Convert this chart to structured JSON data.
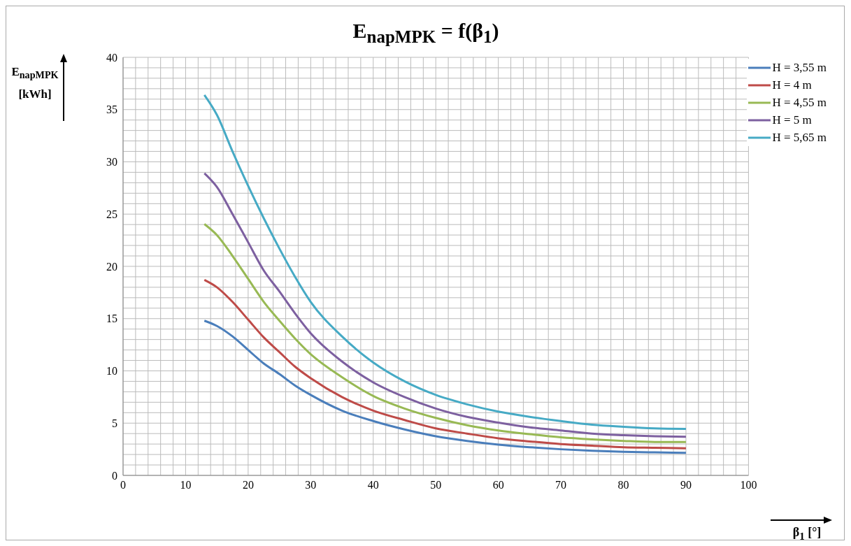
{
  "chart_data": {
    "type": "line",
    "title": "E$_{napMPK}$ = f(β$_{1}$)",
    "xlabel": "β$_{1}$ [°]",
    "ylabel": "E$_{napMPK}$ [kWh]",
    "xlim": [
      0,
      100
    ],
    "ylim": [
      0,
      40
    ],
    "xticks": [
      0,
      {
        "value": 2,
        "label": null
      },
      {
        "value": 4,
        "label": null
      },
      {
        "value": 6,
        "label": null
      },
      {
        "value": 8,
        "label": null
      },
      10,
      {
        "value": 12,
        "label": null
      },
      {
        "value": 14,
        "label": null
      },
      {
        "value": 16,
        "label": null
      },
      {
        "value": 18,
        "label": null
      },
      20,
      {
        "value": 22,
        "label": null
      },
      {
        "value": 24,
        "label": null
      },
      {
        "value": 26,
        "label": null
      },
      {
        "value": 28,
        "label": null
      },
      30,
      {
        "value": 32,
        "label": null
      },
      {
        "value": 34,
        "label": null
      },
      {
        "value": 36,
        "label": null
      },
      {
        "value": 38,
        "label": null
      },
      40,
      {
        "value": 42,
        "label": null
      },
      {
        "value": 44,
        "label": null
      },
      {
        "value": 46,
        "label": null
      },
      {
        "value": 48,
        "label": null
      },
      50,
      {
        "value": 52,
        "label": null
      },
      {
        "value": 54,
        "label": null
      },
      {
        "value": 56,
        "label": null
      },
      {
        "value": 58,
        "label": null
      },
      60,
      {
        "value": 62,
        "label": null
      },
      {
        "value": 64,
        "label": null
      },
      {
        "value": 66,
        "label": null
      },
      {
        "value": 68,
        "label": null
      },
      70,
      {
        "value": 72,
        "label": null
      },
      {
        "value": 74,
        "label": null
      },
      {
        "value": 76,
        "label": null
      },
      {
        "value": 78,
        "label": null
      },
      80,
      {
        "value": 82,
        "label": null
      },
      {
        "value": 84,
        "label": null
      },
      {
        "value": 86,
        "label": null
      },
      {
        "value": 88,
        "label": null
      },
      90,
      {
        "value": 92,
        "label": null
      },
      {
        "value": 94,
        "label": null
      },
      {
        "value": 96,
        "label": null
      },
      {
        "value": 98,
        "label": null
      },
      100
    ],
    "yticks": [
      0,
      {
        "value": 1,
        "label": null
      },
      {
        "value": 2,
        "label": null
      },
      {
        "value": 3,
        "label": null
      },
      {
        "value": 4,
        "label": null
      },
      5,
      {
        "value": 6,
        "label": null
      },
      {
        "value": 7,
        "label": null
      },
      {
        "value": 8,
        "label": null
      },
      {
        "value": 9,
        "label": null
      },
      10,
      {
        "value": 11,
        "label": null
      },
      {
        "value": 12,
        "label": null
      },
      {
        "value": 13,
        "label": null
      },
      {
        "value": 14,
        "label": null
      },
      15,
      {
        "value": 16,
        "label": null
      },
      {
        "value": 17,
        "label": null
      },
      {
        "value": 18,
        "label": null
      },
      {
        "value": 19,
        "label": null
      },
      20,
      {
        "value": 21,
        "label": null
      },
      {
        "value": 22,
        "label": null
      },
      {
        "value": 23,
        "label": null
      },
      {
        "value": 24,
        "label": null
      },
      25,
      {
        "value": 26,
        "label": null
      },
      {
        "value": 27,
        "label": null
      },
      {
        "value": 28,
        "label": null
      },
      {
        "value": 29,
        "label": null
      },
      30,
      {
        "value": 31,
        "label": null
      },
      {
        "value": 32,
        "label": null
      },
      {
        "value": 33,
        "label": null
      },
      {
        "value": 34,
        "label": null
      },
      35,
      {
        "value": 36,
        "label": null
      },
      {
        "value": 37,
        "label": null
      },
      {
        "value": 38,
        "label": null
      },
      {
        "value": 39,
        "label": null
      },
      40
    ],
    "grid": true,
    "legend": "top right",
    "marker": "none",
    "line_style": "solid",
    "x": [
      13,
      15,
      17.5,
      20,
      22.5,
      25,
      27.5,
      30,
      35,
      40,
      45,
      50,
      55,
      60,
      65,
      70,
      75,
      80,
      85,
      90
    ],
    "series": [
      {
        "name": "H = 3,55 m",
        "color": "#4a7ebb",
        "values": [
          14.8,
          14.3,
          13.3,
          12.0,
          10.7,
          9.7,
          8.6,
          7.7,
          6.2,
          5.2,
          4.4,
          3.75,
          3.3,
          2.95,
          2.7,
          2.5,
          2.35,
          2.25,
          2.2,
          2.15
        ]
      },
      {
        "name": "H = 4 m",
        "color": "#be4b48",
        "values": [
          18.7,
          18.0,
          16.6,
          14.9,
          13.2,
          11.8,
          10.4,
          9.3,
          7.5,
          6.2,
          5.3,
          4.5,
          4.0,
          3.55,
          3.25,
          3.0,
          2.85,
          2.7,
          2.65,
          2.6
        ]
      },
      {
        "name": "H = 4,55 m",
        "color": "#98b954",
        "values": [
          24.05,
          23.0,
          21.0,
          18.8,
          16.6,
          14.8,
          13.1,
          11.6,
          9.4,
          7.6,
          6.4,
          5.5,
          4.8,
          4.3,
          3.95,
          3.65,
          3.45,
          3.3,
          3.2,
          3.2
        ]
      },
      {
        "name": "H = 5 m",
        "color": "#7d60a0",
        "values": [
          28.9,
          27.6,
          25.0,
          22.3,
          19.6,
          17.6,
          15.5,
          13.6,
          10.9,
          8.9,
          7.5,
          6.4,
          5.6,
          5.05,
          4.6,
          4.3,
          4.0,
          3.85,
          3.75,
          3.7
        ]
      },
      {
        "name": "H = 5,65 m",
        "color": "#46aac5",
        "values": [
          36.4,
          34.5,
          31.0,
          27.7,
          24.6,
          21.7,
          19.0,
          16.6,
          13.3,
          10.8,
          9.0,
          7.7,
          6.8,
          6.1,
          5.6,
          5.2,
          4.85,
          4.65,
          4.5,
          4.45
        ]
      }
    ]
  }
}
